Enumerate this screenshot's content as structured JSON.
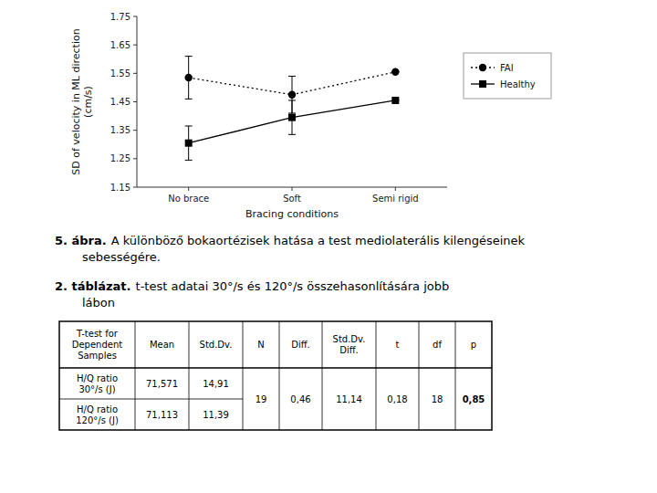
{
  "chart_data": {
    "type": "line",
    "categories": [
      "No brace",
      "Soft",
      "Semi rigid"
    ],
    "series": [
      {
        "name": "FAI",
        "color": "#000000",
        "marker": "circle",
        "line_style": "dotted",
        "values": [
          1.535,
          1.475,
          1.555
        ],
        "errors": [
          0.075,
          0.065,
          0.0
        ]
      },
      {
        "name": "Healthy",
        "color": "#000000",
        "marker": "square",
        "line_style": "solid",
        "values": [
          1.305,
          1.395,
          1.455
        ],
        "errors": [
          0.06,
          0.06,
          0.0
        ]
      }
    ],
    "y_label": "SD of velocity in ML direction\n(cm/s)",
    "x_label": "Bracing conditions",
    "ylim": [
      1.15,
      1.75
    ],
    "yticks": [
      1.15,
      1.25,
      1.35,
      1.45,
      1.55,
      1.65,
      1.75
    ],
    "grid": false,
    "legend": "right",
    "annotations": [
      [
        "5. ábra.",
        "A különböző bokaortézisek hatása a test mediolaterális kilengéseinek",
        "sebességére."
      ]
    ]
  },
  "table": {
    "caption": [
      "2. táblázat.",
      "t-test adatai 30°/s és 120°/s összehasonlítására jobb",
      "lábon"
    ],
    "headers": [
      "T-test for\nDependent\nSamples",
      "Mean",
      "Std.Dv.",
      "N",
      "Diff.",
      "Std.Dv.\nDiff.",
      "t",
      "df",
      "p"
    ],
    "rows": [
      [
        "H/Q ratio\n30°/s (J)",
        "71,571",
        "14,91"
      ],
      [
        "H/Q ratio\n120°/s (J)",
        "71,113",
        "11,39"
      ]
    ],
    "shared": [
      "19",
      "0,46",
      "11,14",
      "0,18",
      "18",
      "0,85"
    ]
  }
}
